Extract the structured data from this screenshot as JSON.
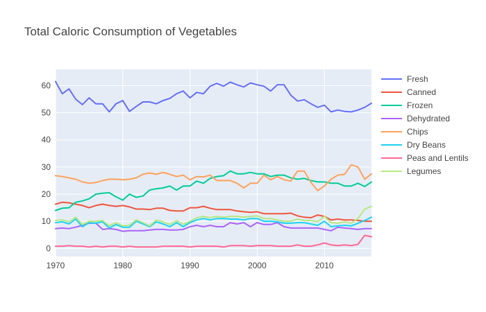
{
  "chart_data": {
    "type": "line",
    "title": "Total Caloric Consumption of Vegetables",
    "xlabel": "",
    "ylabel": "",
    "xlim": [
      1970,
      2017
    ],
    "ylim": [
      -3,
      66
    ],
    "x_ticks": [
      1970,
      1980,
      1990,
      2000,
      2010
    ],
    "y_ticks": [
      0,
      10,
      20,
      30,
      40,
      50,
      60
    ],
    "grid": true,
    "legend_position": "right",
    "plot_background": "#e5ecf6",
    "x": [
      1970,
      1971,
      1972,
      1973,
      1974,
      1975,
      1976,
      1977,
      1978,
      1979,
      1980,
      1981,
      1982,
      1983,
      1984,
      1985,
      1986,
      1987,
      1988,
      1989,
      1990,
      1991,
      1992,
      1993,
      1994,
      1995,
      1996,
      1997,
      1998,
      1999,
      2000,
      2001,
      2002,
      2003,
      2004,
      2005,
      2006,
      2007,
      2008,
      2009,
      2010,
      2011,
      2012,
      2013,
      2014,
      2015,
      2016,
      2017
    ],
    "series": [
      {
        "name": "Fresh",
        "color": "#636efa",
        "values": [
          61.5,
          57.0,
          58.8,
          55.0,
          53.0,
          55.5,
          53.3,
          53.3,
          50.3,
          53.3,
          54.5,
          50.5,
          52.3,
          54.0,
          54.0,
          53.3,
          54.5,
          55.3,
          57.0,
          58.0,
          55.5,
          57.5,
          57.0,
          59.8,
          60.8,
          59.8,
          61.3,
          60.3,
          59.5,
          61.0,
          60.3,
          59.8,
          58.0,
          60.3,
          60.3,
          56.5,
          54.3,
          54.8,
          53.3,
          52.0,
          52.8,
          50.3,
          51.0,
          50.5,
          50.3,
          51.0,
          52.0,
          53.5
        ]
      },
      {
        "name": "Canned",
        "color": "#ef553b",
        "values": [
          16.3,
          17.0,
          16.8,
          16.3,
          15.8,
          15.0,
          15.8,
          16.3,
          15.8,
          15.5,
          15.8,
          15.3,
          14.5,
          14.5,
          14.3,
          14.8,
          14.8,
          14.0,
          13.8,
          13.8,
          15.0,
          15.0,
          15.5,
          14.8,
          14.3,
          14.3,
          14.3,
          13.8,
          13.5,
          13.3,
          13.5,
          12.8,
          12.8,
          12.8,
          12.8,
          13.0,
          12.0,
          11.5,
          11.3,
          12.3,
          11.8,
          10.5,
          10.8,
          10.5,
          10.5,
          10.3,
          10.0,
          10.0
        ]
      },
      {
        "name": "Frozen",
        "color": "#00cc96",
        "values": [
          14.0,
          14.8,
          15.0,
          17.0,
          17.5,
          18.3,
          20.0,
          20.3,
          20.5,
          19.0,
          17.8,
          20.0,
          18.8,
          19.3,
          21.5,
          22.0,
          22.3,
          23.0,
          21.5,
          23.0,
          23.0,
          24.8,
          24.0,
          25.8,
          26.5,
          26.8,
          28.5,
          27.5,
          27.5,
          28.0,
          27.5,
          27.5,
          26.5,
          27.0,
          27.0,
          26.0,
          25.5,
          25.8,
          25.0,
          24.5,
          24.5,
          24.0,
          24.0,
          23.0,
          23.0,
          24.0,
          22.8,
          24.5
        ]
      },
      {
        "name": "Dehydrated",
        "color": "#ab63fa",
        "values": [
          7.3,
          7.5,
          7.3,
          7.8,
          8.5,
          9.3,
          9.3,
          7.0,
          7.3,
          7.0,
          6.3,
          6.5,
          6.5,
          6.5,
          6.8,
          7.0,
          7.0,
          6.8,
          6.8,
          7.0,
          8.0,
          8.5,
          8.0,
          8.5,
          8.0,
          8.0,
          9.5,
          9.0,
          9.5,
          8.0,
          9.5,
          8.8,
          8.8,
          9.5,
          8.0,
          7.5,
          7.5,
          7.5,
          7.5,
          7.5,
          7.0,
          6.5,
          7.8,
          7.5,
          7.3,
          7.0,
          7.3,
          7.3
        ]
      },
      {
        "name": "Chips",
        "color": "#ffa15a",
        "values": [
          26.8,
          26.5,
          26.0,
          25.5,
          24.5,
          24.0,
          24.3,
          25.0,
          25.5,
          25.5,
          25.3,
          25.5,
          26.0,
          27.3,
          27.8,
          27.3,
          28.0,
          27.3,
          26.5,
          27.0,
          25.3,
          26.5,
          26.3,
          27.0,
          25.0,
          25.0,
          25.0,
          24.0,
          22.3,
          24.0,
          24.0,
          27.0,
          25.3,
          26.5,
          25.3,
          24.8,
          28.5,
          28.5,
          24.3,
          21.3,
          23.0,
          25.5,
          27.0,
          27.3,
          30.8,
          30.0,
          25.5,
          27.5
        ]
      },
      {
        "name": "Dry Beans",
        "color": "#19d3f3",
        "values": [
          9.5,
          9.8,
          9.0,
          10.8,
          8.0,
          9.5,
          9.3,
          9.8,
          7.5,
          8.8,
          7.8,
          7.8,
          10.0,
          9.0,
          8.0,
          9.8,
          9.0,
          8.0,
          9.5,
          8.0,
          9.5,
          10.5,
          11.0,
          10.5,
          11.0,
          11.0,
          10.8,
          10.8,
          10.5,
          11.0,
          11.0,
          10.0,
          10.0,
          9.8,
          9.3,
          9.3,
          9.5,
          9.5,
          9.0,
          8.5,
          10.0,
          8.0,
          8.3,
          8.5,
          8.3,
          9.3,
          10.3,
          11.5
        ]
      },
      {
        "name": "Peas and Lentils",
        "color": "#ff6692",
        "values": [
          0.8,
          0.8,
          1.0,
          0.8,
          0.8,
          0.5,
          0.8,
          0.5,
          0.8,
          0.8,
          0.5,
          0.8,
          0.5,
          0.5,
          0.5,
          0.5,
          0.8,
          0.8,
          0.8,
          0.8,
          0.5,
          0.8,
          0.8,
          0.8,
          0.8,
          0.5,
          1.0,
          1.0,
          1.0,
          0.8,
          1.0,
          1.0,
          1.0,
          0.8,
          0.8,
          0.8,
          1.3,
          0.8,
          0.8,
          1.3,
          2.0,
          1.3,
          1.0,
          1.3,
          1.0,
          1.5,
          4.8,
          4.3
        ]
      },
      {
        "name": "Legumes",
        "color": "#b6e880",
        "values": [
          10.3,
          10.5,
          9.8,
          11.5,
          8.8,
          10.0,
          10.0,
          10.3,
          8.3,
          9.5,
          8.3,
          8.5,
          10.5,
          9.5,
          8.3,
          10.5,
          9.8,
          8.8,
          10.3,
          8.8,
          10.0,
          11.3,
          11.8,
          11.3,
          11.8,
          11.5,
          11.8,
          11.8,
          11.5,
          11.8,
          12.0,
          11.0,
          11.0,
          10.5,
          10.0,
          10.0,
          10.8,
          10.3,
          10.3,
          9.8,
          11.8,
          9.5,
          9.3,
          9.8,
          9.3,
          11.0,
          14.5,
          15.5
        ]
      }
    ]
  }
}
